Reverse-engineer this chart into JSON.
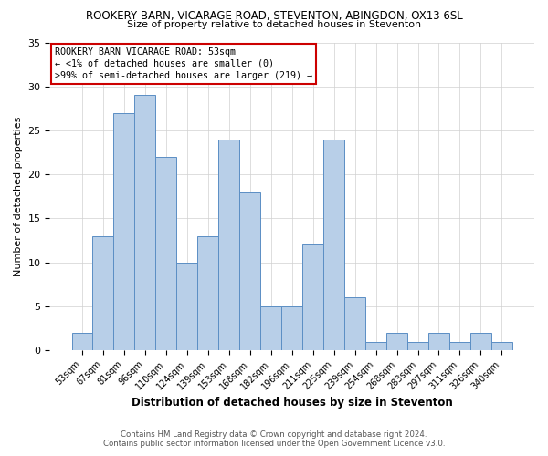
{
  "title1": "ROOKERY BARN, VICARAGE ROAD, STEVENTON, ABINGDON, OX13 6SL",
  "title2": "Size of property relative to detached houses in Steventon",
  "xlabel": "Distribution of detached houses by size in Steventon",
  "ylabel": "Number of detached properties",
  "bar_labels": [
    "53sqm",
    "67sqm",
    "81sqm",
    "96sqm",
    "110sqm",
    "124sqm",
    "139sqm",
    "153sqm",
    "168sqm",
    "182sqm",
    "196sqm",
    "211sqm",
    "225sqm",
    "239sqm",
    "254sqm",
    "268sqm",
    "283sqm",
    "297sqm",
    "311sqm",
    "326sqm",
    "340sqm"
  ],
  "bar_values": [
    2,
    13,
    27,
    29,
    22,
    10,
    13,
    24,
    18,
    5,
    5,
    12,
    24,
    6,
    1,
    2,
    1,
    2,
    1,
    2,
    1
  ],
  "bar_color": "#b8cfe8",
  "bar_edge_color": "#5b8ec4",
  "ylim": [
    0,
    35
  ],
  "yticks": [
    0,
    5,
    10,
    15,
    20,
    25,
    30,
    35
  ],
  "annotation_title": "ROOKERY BARN VICARAGE ROAD: 53sqm",
  "annotation_line2": "← <1% of detached houses are smaller (0)",
  "annotation_line3": ">99% of semi-detached houses are larger (219) →",
  "annotation_box_color": "#ffffff",
  "annotation_box_edge": "#cc0000",
  "footer1": "Contains HM Land Registry data © Crown copyright and database right 2024.",
  "footer2": "Contains public sector information licensed under the Open Government Licence v3.0.",
  "background_color": "#ffffff",
  "grid_color": "#d0d0d0"
}
